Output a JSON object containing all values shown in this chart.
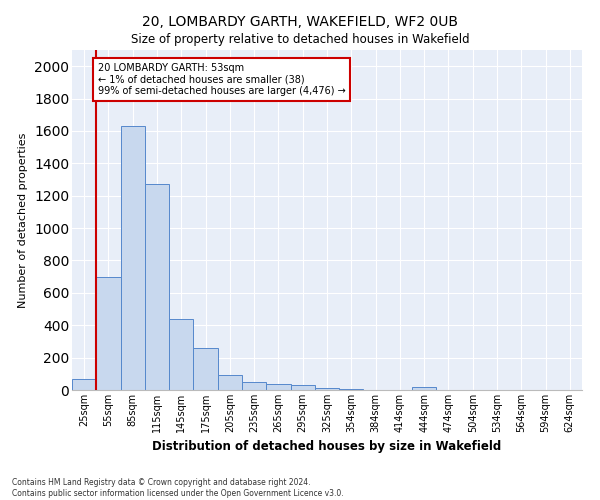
{
  "title": "20, LOMBARDY GARTH, WAKEFIELD, WF2 0UB",
  "subtitle": "Size of property relative to detached houses in Wakefield",
  "xlabel": "Distribution of detached houses by size in Wakefield",
  "ylabel": "Number of detached properties",
  "bar_color": "#c8d8ee",
  "bar_edge_color": "#5588cc",
  "annotation_line_color": "#cc0000",
  "background_color": "#e8eef8",
  "categories": [
    "25sqm",
    "55sqm",
    "85sqm",
    "115sqm",
    "145sqm",
    "175sqm",
    "205sqm",
    "235sqm",
    "265sqm",
    "295sqm",
    "325sqm",
    "354sqm",
    "384sqm",
    "414sqm",
    "444sqm",
    "474sqm",
    "504sqm",
    "534sqm",
    "564sqm",
    "594sqm",
    "624sqm"
  ],
  "values": [
    65,
    700,
    1630,
    1275,
    440,
    260,
    95,
    50,
    35,
    30,
    15,
    5,
    2,
    0,
    20,
    0,
    0,
    0,
    0,
    0,
    0
  ],
  "ylim": [
    0,
    2100
  ],
  "yticks": [
    0,
    200,
    400,
    600,
    800,
    1000,
    1200,
    1400,
    1600,
    1800,
    2000
  ],
  "property_sqm": 53,
  "annotation_text_line1": "20 LOMBARDY GARTH: 53sqm",
  "annotation_text_line2": "← 1% of detached houses are smaller (38)",
  "annotation_text_line3": "99% of semi-detached houses are larger (4,476) →",
  "footer_line1": "Contains HM Land Registry data © Crown copyright and database right 2024.",
  "footer_line2": "Contains public sector information licensed under the Open Government Licence v3.0."
}
